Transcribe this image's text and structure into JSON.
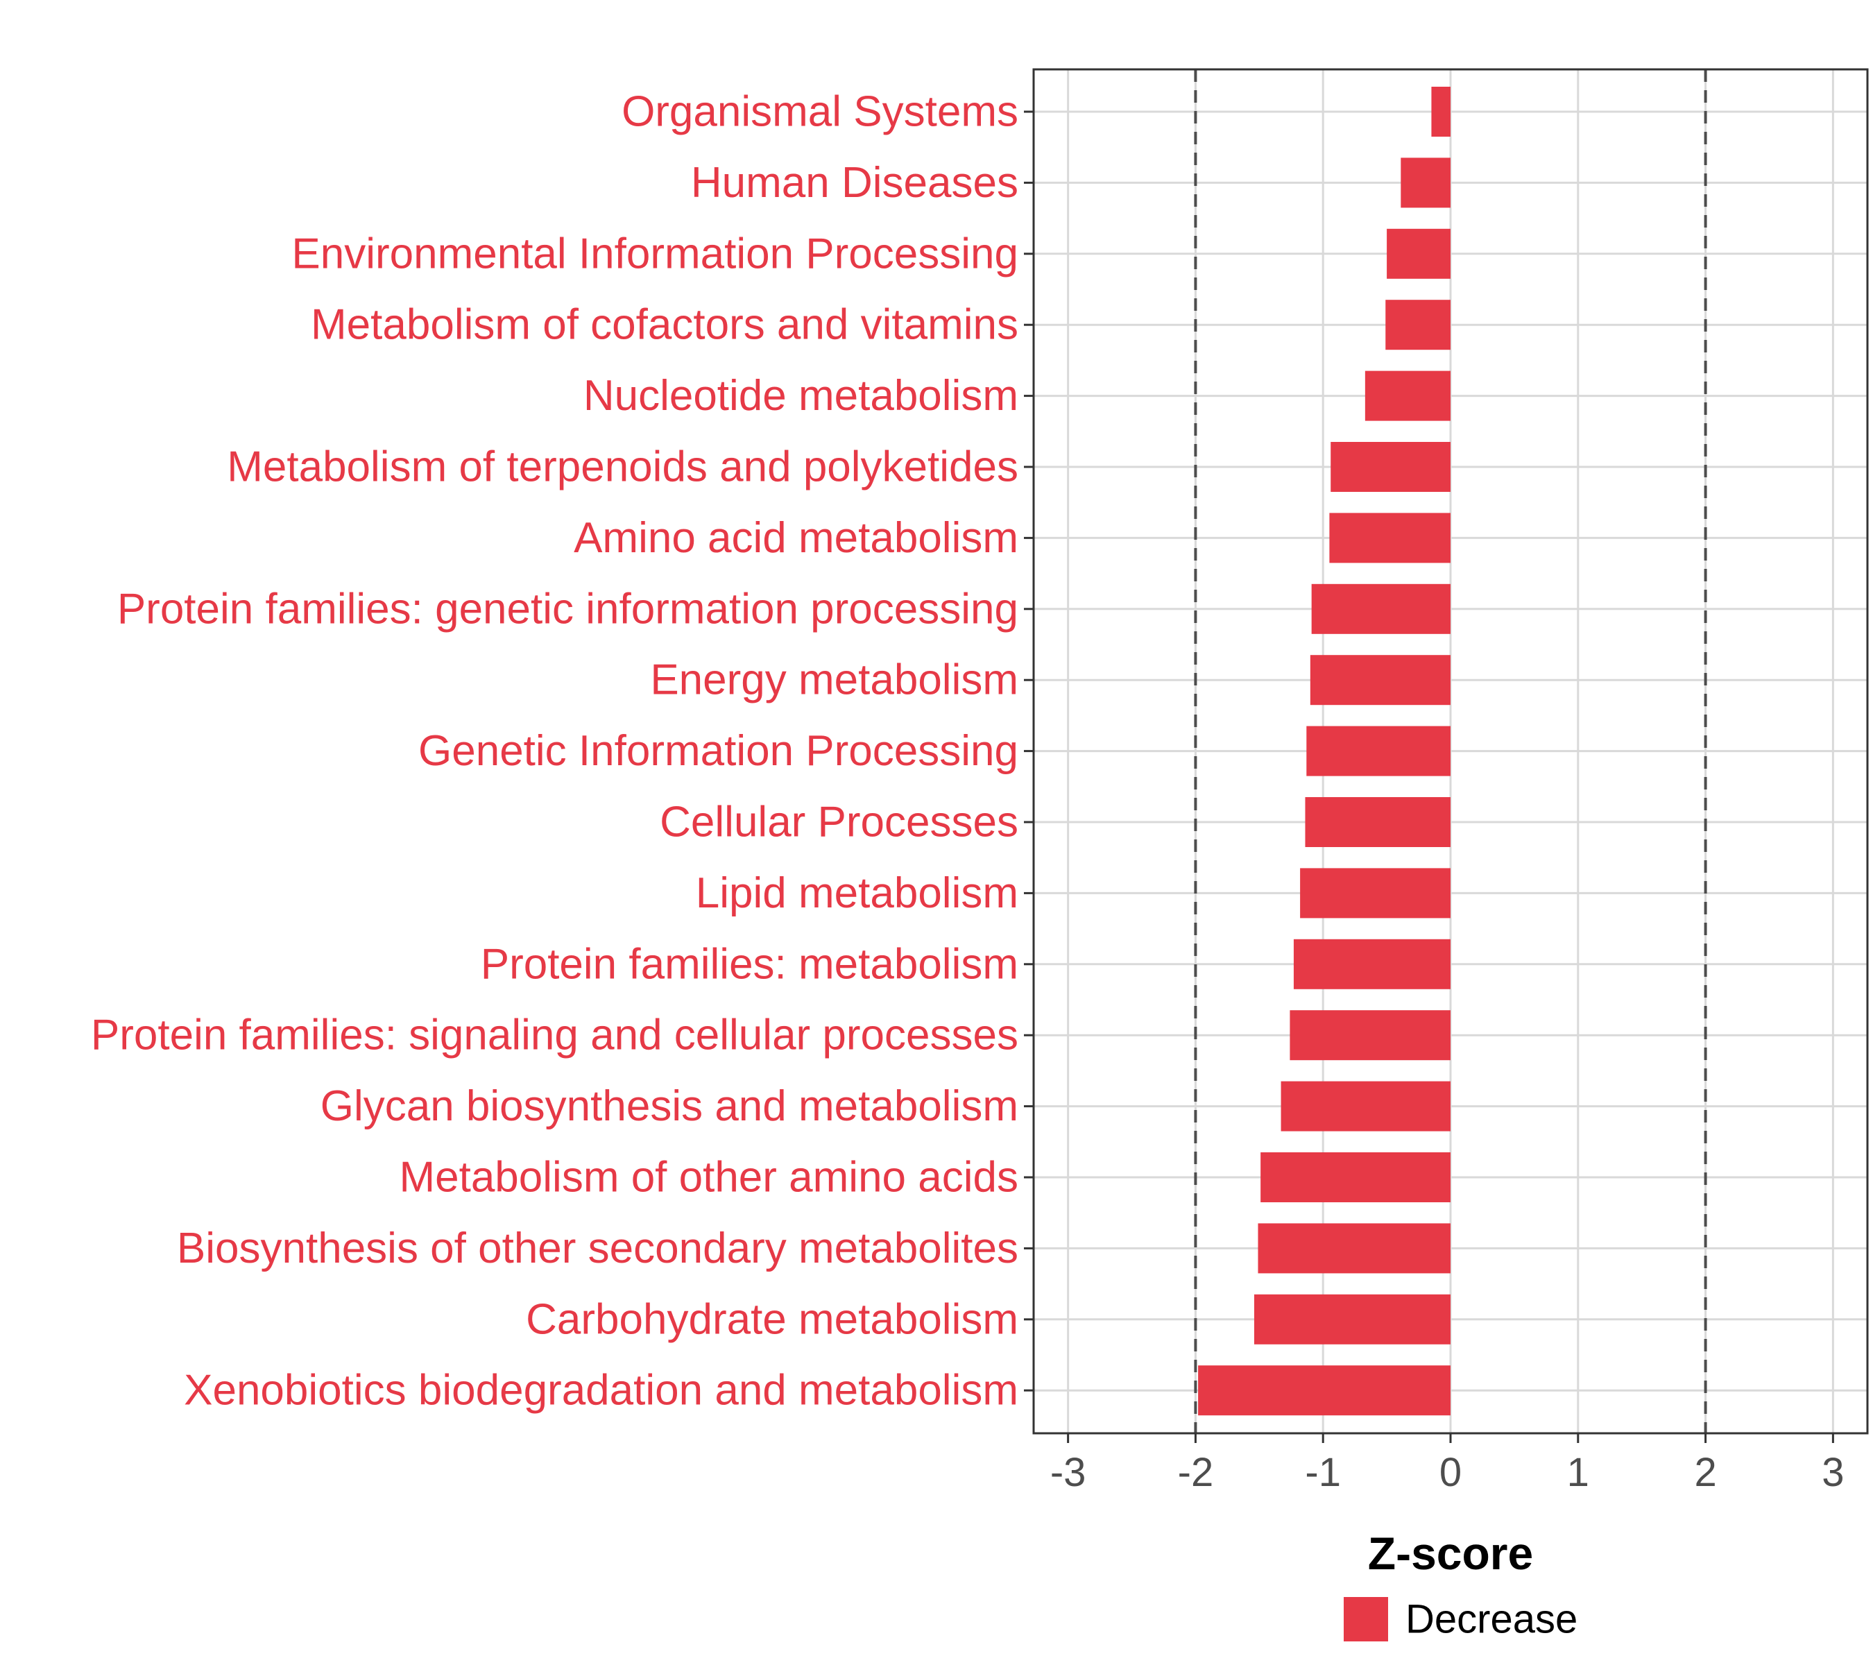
{
  "chart_data": {
    "type": "bar",
    "orientation": "horizontal",
    "categories": [
      "Organismal Systems",
      "Human Diseases",
      "Environmental Information Processing",
      "Metabolism of cofactors and vitamins",
      "Nucleotide metabolism",
      "Metabolism of terpenoids and polyketides",
      "Amino acid metabolism",
      "Protein families: genetic information processing",
      "Energy metabolism",
      "Genetic Information Processing",
      "Cellular Processes",
      "Lipid metabolism",
      "Protein families: metabolism",
      "Protein families: signaling and cellular processes",
      "Glycan biosynthesis and metabolism",
      "Metabolism of other amino acids",
      "Biosynthesis of other secondary metabolites",
      "Carbohydrate metabolism",
      "Xenobiotics biodegradation and metabolism"
    ],
    "values": [
      -0.15,
      -0.39,
      -0.5,
      -0.51,
      -0.67,
      -0.94,
      -0.95,
      -1.09,
      -1.1,
      -1.13,
      -1.14,
      -1.18,
      -1.23,
      -1.26,
      -1.33,
      -1.49,
      -1.51,
      -1.54,
      -1.98
    ],
    "series": [
      {
        "name": "Decrease",
        "color": "#e63946"
      }
    ],
    "title": "",
    "xlabel": "Z-score",
    "ylabel": "",
    "xlim": [
      -3.27,
      3.27
    ],
    "xticks": [
      -3,
      -2,
      -1,
      0,
      1,
      2,
      3
    ],
    "xtick_labels": [
      "-3",
      "-2",
      "-1",
      "0",
      "1",
      "2",
      "3"
    ],
    "reference_lines": [
      -2,
      2
    ],
    "grid": true,
    "legend": {
      "position": "bottom",
      "entries": [
        "Decrease"
      ]
    },
    "colors": {
      "bar": "#e63946",
      "label": "#e63946",
      "grid": "#d9d9d9",
      "reference": "#4d4d4d"
    }
  }
}
